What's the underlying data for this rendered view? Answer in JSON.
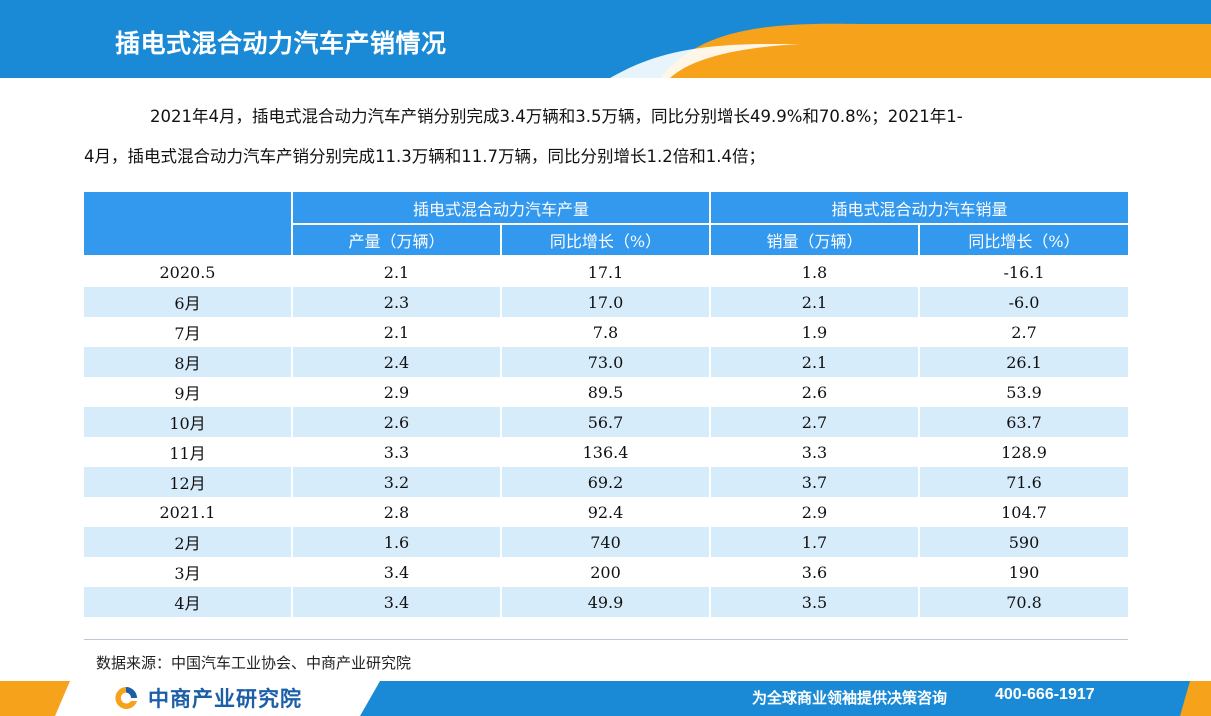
{
  "header": {
    "title": "插电式混合动力汽车产销情况",
    "primary_color": "#1a8ad6",
    "accent_color": "#f7a21b"
  },
  "intro": {
    "line1": "2021年4月，插电式混合动力汽车产销分别完成3.4万辆和3.5万辆，同比分别增长49.9%和70.8%；2021年1-",
    "line2": "4月，插电式混合动力汽车产销分别完成11.3万辆和11.7万辆，同比分别增长1.2倍和1.4倍；"
  },
  "table": {
    "group_production": "插电式混合动力汽车产量",
    "group_sales": "插电式混合动力汽车销量",
    "col_prod_volume": "产量（万辆）",
    "col_prod_growth": "同比增长（%）",
    "col_sales_volume": "销量（万辆）",
    "col_sales_growth": "同比增长（%）",
    "header_color": "#3399ee",
    "stripe_color": "#d7ecfb",
    "rows": [
      {
        "period": "2020.5",
        "prod": "2.1",
        "prod_growth": "17.1",
        "sales": "1.8",
        "sales_growth": "-16.1"
      },
      {
        "period": "6月",
        "prod": "2.3",
        "prod_growth": "17.0",
        "sales": "2.1",
        "sales_growth": "-6.0"
      },
      {
        "period": "7月",
        "prod": "2.1",
        "prod_growth": "7.8",
        "sales": "1.9",
        "sales_growth": "2.7"
      },
      {
        "period": "8月",
        "prod": "2.4",
        "prod_growth": "73.0",
        "sales": "2.1",
        "sales_growth": "26.1"
      },
      {
        "period": "9月",
        "prod": "2.9",
        "prod_growth": "89.5",
        "sales": "2.6",
        "sales_growth": "53.9"
      },
      {
        "period": "10月",
        "prod": "2.6",
        "prod_growth": "56.7",
        "sales": "2.7",
        "sales_growth": "63.7"
      },
      {
        "period": "11月",
        "prod": "3.3",
        "prod_growth": "136.4",
        "sales": "3.3",
        "sales_growth": "128.9"
      },
      {
        "period": "12月",
        "prod": "3.2",
        "prod_growth": "69.2",
        "sales": "3.7",
        "sales_growth": "71.6"
      },
      {
        "period": "2021.1",
        "prod": "2.8",
        "prod_growth": "92.4",
        "sales": "2.9",
        "sales_growth": "104.7"
      },
      {
        "period": "2月",
        "prod": "1.6",
        "prod_growth": "740",
        "sales": "1.7",
        "sales_growth": "590"
      },
      {
        "period": "3月",
        "prod": "3.4",
        "prod_growth": "200",
        "sales": "3.6",
        "sales_growth": "190"
      },
      {
        "period": "4月",
        "prod": "3.4",
        "prod_growth": "49.9",
        "sales": "3.5",
        "sales_growth": "70.8"
      }
    ]
  },
  "source": "数据来源：中国汽车工业协会、中商产业研究院",
  "footer": {
    "brand": "中商产业研究院",
    "brand_icon": "askci-logo-icon",
    "slogan": "为全球商业领袖提供决策咨询",
    "phone": "400-666-1917"
  }
}
